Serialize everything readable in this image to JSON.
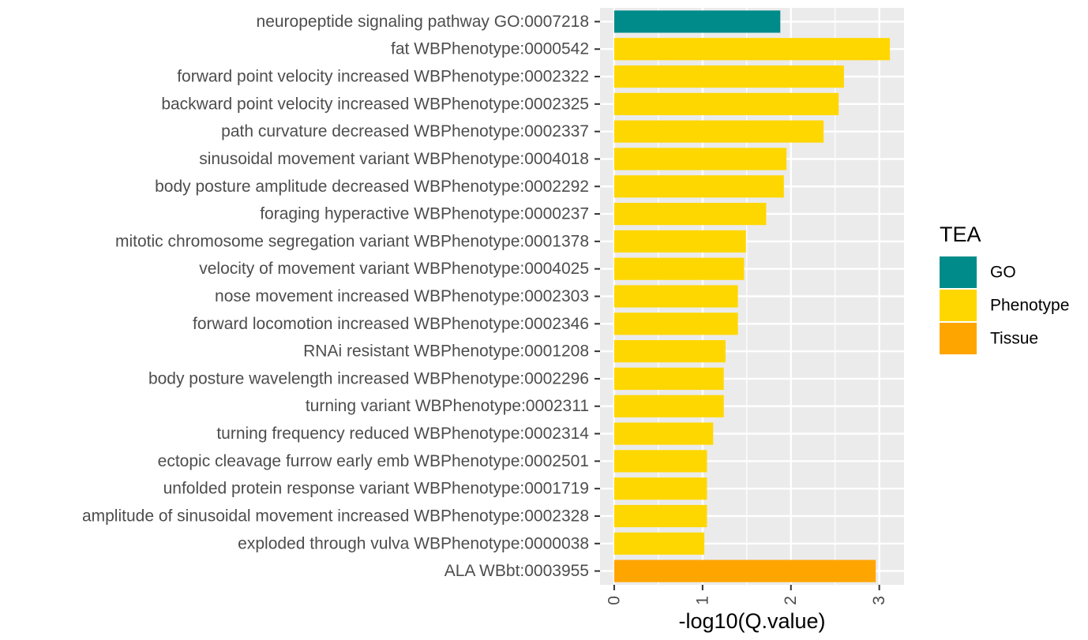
{
  "chart_data": {
    "type": "bar",
    "orientation": "horizontal",
    "categories": [
      "neuropeptide signaling pathway GO:0007218",
      "fat WBPhenotype:0000542",
      "forward point velocity increased WBPhenotype:0002322",
      "backward point velocity increased WBPhenotype:0002325",
      "path curvature decreased WBPhenotype:0002337",
      "sinusoidal movement variant WBPhenotype:0004018",
      "body posture amplitude decreased WBPhenotype:0002292",
      "foraging hyperactive WBPhenotype:0000237",
      "mitotic chromosome segregation variant WBPhenotype:0001378",
      "velocity of movement variant WBPhenotype:0004025",
      "nose movement increased WBPhenotype:0002303",
      "forward locomotion increased WBPhenotype:0002346",
      "RNAi resistant WBPhenotype:0001208",
      "body posture wavelength increased WBPhenotype:0002296",
      "turning variant WBPhenotype:0002311",
      "turning frequency reduced WBPhenotype:0002314",
      "ectopic cleavage furrow early emb WBPhenotype:0002501",
      "unfolded protein response variant WBPhenotype:0001719",
      "amplitude of sinusoidal movement increased WBPhenotype:0002328",
      "exploded through vulva WBPhenotype:0000038",
      "ALA WBbt:0003955"
    ],
    "values": [
      1.88,
      3.12,
      2.6,
      2.54,
      2.37,
      1.95,
      1.92,
      1.72,
      1.49,
      1.47,
      1.4,
      1.4,
      1.26,
      1.24,
      1.24,
      1.12,
      1.05,
      1.05,
      1.05,
      1.02,
      2.96
    ],
    "groups": [
      "GO",
      "Phenotype",
      "Phenotype",
      "Phenotype",
      "Phenotype",
      "Phenotype",
      "Phenotype",
      "Phenotype",
      "Phenotype",
      "Phenotype",
      "Phenotype",
      "Phenotype",
      "Phenotype",
      "Phenotype",
      "Phenotype",
      "Phenotype",
      "Phenotype",
      "Phenotype",
      "Phenotype",
      "Phenotype",
      "Tissue"
    ],
    "xlabel": "-log10(Q.value)",
    "ylabel": "",
    "xlim": [
      -0.16,
      3.28
    ],
    "x_ticks": [
      "0",
      "1",
      "2",
      "3"
    ],
    "grid": true,
    "legend": {
      "title": "TEA",
      "position": "right",
      "entries": [
        "GO",
        "Phenotype",
        "Tissue"
      ]
    },
    "colors": {
      "GO": "#008b8b",
      "Phenotype": "#ffd700",
      "Tissue": "#ffa500",
      "panel": "#ebebeb",
      "grid": "#ffffff"
    }
  }
}
